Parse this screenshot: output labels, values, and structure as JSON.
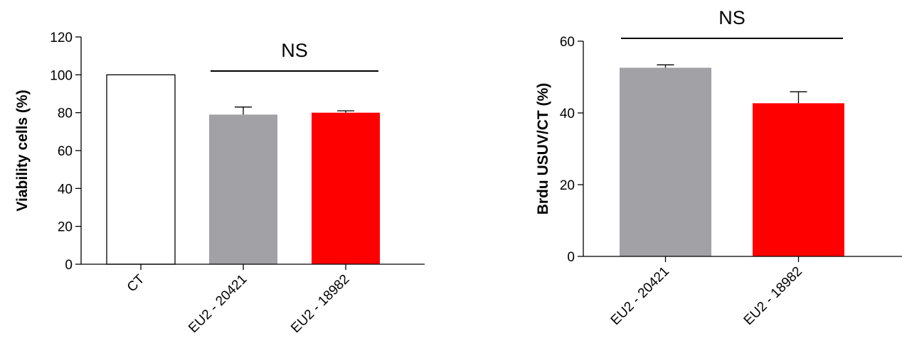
{
  "chart_data": [
    {
      "type": "bar",
      "ylabel": "Viability cells (%)",
      "xlabel": "",
      "title": "",
      "ylim": [
        0,
        120
      ],
      "yticks": [
        0,
        20,
        40,
        60,
        80,
        100,
        120
      ],
      "categories": [
        "CT",
        "EU2 - 20421",
        "EU2 - 18982"
      ],
      "values": [
        100,
        79,
        80
      ],
      "error_upper": [
        0,
        4,
        1
      ],
      "colors": [
        "#ffffff",
        "#a2a1a6",
        "#ff0000"
      ],
      "outlined": [
        true,
        false,
        false
      ],
      "grid": false,
      "annotation": {
        "text": "NS",
        "from_category": 1,
        "to_category": 2,
        "y": 102
      }
    },
    {
      "type": "bar",
      "ylabel": "Brdu USUV/CT (%)",
      "xlabel": "",
      "title": "",
      "ylim": [
        0,
        60
      ],
      "yticks": [
        0,
        20,
        40,
        60
      ],
      "categories": [
        "EU2 - 20421",
        "EU2 - 18982"
      ],
      "values": [
        52.6,
        42.7
      ],
      "error_upper": [
        0.8,
        3.2
      ],
      "colors": [
        "#a2a1a6",
        "#ff0000"
      ],
      "outlined": [
        false,
        false
      ],
      "grid": false,
      "annotation": {
        "text": "NS",
        "from_category": 0,
        "to_category": 1,
        "y": 60.8
      }
    }
  ]
}
